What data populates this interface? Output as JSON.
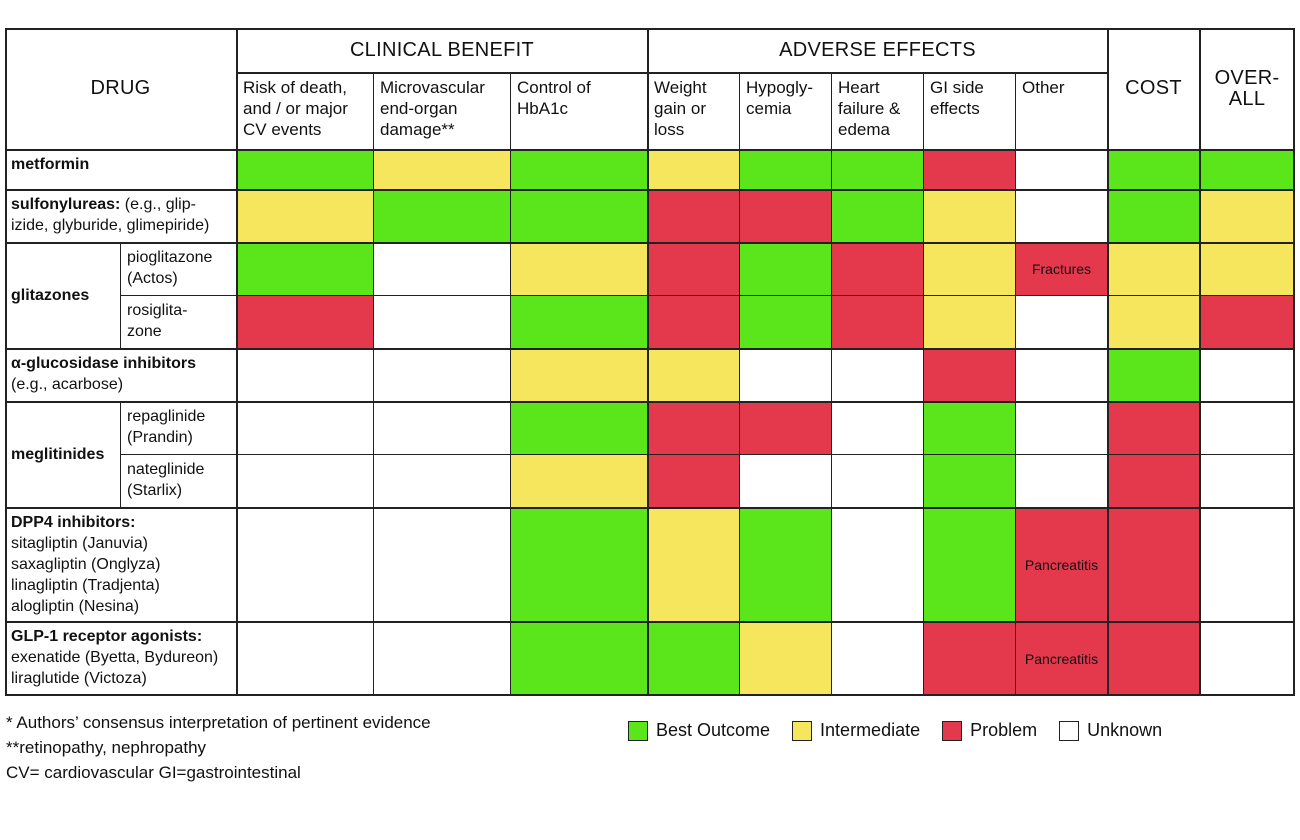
{
  "colors": {
    "green": "#5be61c",
    "yellow": "#f6e65d",
    "red": "#e4384d",
    "white": "#ffffff"
  },
  "header": {
    "drug": "DRUG",
    "clinical_benefit": "CLINICAL BENEFIT",
    "adverse_effects": "ADVERSE EFFECTS",
    "cost": "COST",
    "overall": "OVER-\nALL",
    "columns": [
      "Risk of death,\nand / or major\nCV events",
      "Microvascular\nend-organ\ndamage**",
      "Control of\nHbA1c",
      "Weight\ngain or\nloss",
      "Hypogly-\ncemia",
      "Heart\nfailure &\nedema",
      "GI side\neffects",
      "Other"
    ]
  },
  "rows": [
    {
      "group": "metformin",
      "group_bold": "metformin",
      "sub": "",
      "group_rest": "",
      "cells": [
        "green",
        "yellow",
        "green",
        "yellow",
        "green",
        "green",
        "red",
        "white",
        "green",
        "green"
      ],
      "notes": {}
    },
    {
      "group": "sulfonylureas",
      "group_bold": "sulfonylureas:",
      "group_rest": " (e.g., glip-\nizide, glyburide, glimepiride)",
      "sub": "",
      "cells": [
        "yellow",
        "green",
        "green",
        "red",
        "red",
        "green",
        "yellow",
        "white",
        "green",
        "yellow"
      ],
      "notes": {}
    },
    {
      "group": "glitazones",
      "group_bold": "glitazones",
      "group_rest": "",
      "sub": "pioglitazone\n(Actos)",
      "cells": [
        "green",
        "white",
        "yellow",
        "red",
        "green",
        "red",
        "yellow",
        "red",
        "yellow",
        "yellow"
      ],
      "notes": {
        "7": "Fractures"
      }
    },
    {
      "group": "glitazones",
      "group_bold": "",
      "group_rest": "",
      "sub": "rosiglita-\nzone",
      "cells": [
        "red",
        "white",
        "green",
        "red",
        "green",
        "red",
        "yellow",
        "white",
        "yellow",
        "red"
      ],
      "notes": {}
    },
    {
      "group": "alpha-glucosidase",
      "group_bold": "α-glucosidase inhibitors",
      "group_rest": "\n(e.g., acarbose)",
      "sub": "",
      "cells": [
        "white",
        "white",
        "yellow",
        "yellow",
        "white",
        "white",
        "red",
        "white",
        "green",
        "white"
      ],
      "notes": {}
    },
    {
      "group": "meglitinides",
      "group_bold": "meglitinides",
      "group_rest": "",
      "sub": "repaglinide\n(Prandin)",
      "cells": [
        "white",
        "white",
        "green",
        "red",
        "red",
        "white",
        "green",
        "white",
        "red",
        "white"
      ],
      "notes": {}
    },
    {
      "group": "meglitinides",
      "group_bold": "",
      "group_rest": "",
      "sub": "nateglinide\n(Starlix)",
      "cells": [
        "white",
        "white",
        "yellow",
        "red",
        "white",
        "white",
        "green",
        "white",
        "red",
        "white"
      ],
      "notes": {}
    },
    {
      "group": "dpp4",
      "group_bold": "DPP4 inhibitors:",
      "group_rest": "\nsitagliptin (Januvia)\nsaxagliptin (Onglyza)\nlinagliptin (Tradjenta)\nalogliptin (Nesina)",
      "sub": "",
      "cells": [
        "white",
        "white",
        "green",
        "yellow",
        "green",
        "white",
        "green",
        "red",
        "red",
        "white"
      ],
      "notes": {
        "7": "Pancreatitis"
      }
    },
    {
      "group": "glp1",
      "group_bold": "GLP-1 receptor agonists:",
      "group_rest": "\nexenatide (Byetta, Bydureon)\nliraglutide (Victoza)",
      "sub": "",
      "cells": [
        "white",
        "white",
        "green",
        "green",
        "yellow",
        "white",
        "red",
        "red",
        "red",
        "white"
      ],
      "notes": {
        "7": "Pancreatitis"
      }
    }
  ],
  "footnotes": {
    "line1": "* Authors’ consensus interpretation of pertinent evidence",
    "line2": "**retinopathy, nephropathy",
    "line3": "CV= cardiovascular   GI=gastrointestinal"
  },
  "legend": [
    {
      "label": "Best Outcome",
      "color": "#5be61c"
    },
    {
      "label": "Intermediate",
      "color": "#f6e65d"
    },
    {
      "label": "Problem",
      "color": "#e4384d"
    },
    {
      "label": "Unknown",
      "color": "#ffffff"
    }
  ]
}
